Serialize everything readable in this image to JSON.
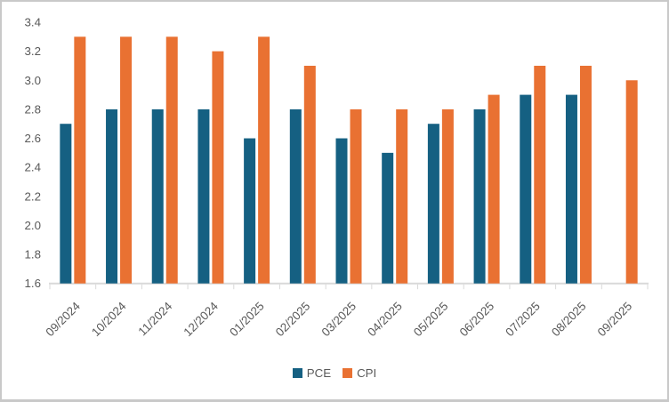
{
  "chart_data": {
    "type": "bar",
    "title": "",
    "xlabel": "",
    "ylabel": "",
    "categories": [
      "09/2024",
      "10/2024",
      "11/2024",
      "12/2024",
      "01/2025",
      "02/2025",
      "03/2025",
      "04/2025",
      "05/2025",
      "06/2025",
      "07/2025",
      "08/2025",
      "09/2025"
    ],
    "series": [
      {
        "name": "PCE",
        "color": "#156082",
        "values": [
          2.7,
          2.8,
          2.8,
          2.8,
          2.6,
          2.8,
          2.6,
          2.5,
          2.7,
          2.8,
          2.9,
          2.9,
          null
        ]
      },
      {
        "name": "CPI",
        "color": "#E97132",
        "values": [
          3.3,
          3.3,
          3.3,
          3.2,
          3.3,
          3.1,
          2.8,
          2.8,
          2.8,
          2.9,
          3.1,
          3.1,
          3.0
        ]
      }
    ],
    "ylim": [
      1.6,
      3.4
    ],
    "ytick_step": 0.2,
    "ytick_labels": [
      "3.4",
      "3.2",
      "3.0",
      "2.8",
      "2.6",
      "2.4",
      "2.2",
      "2.0",
      "1.8",
      "1.6"
    ],
    "grid": false,
    "legend_position": "bottom",
    "x_label_rotation_deg": -45,
    "colors": {
      "axis_line": "#D9D9D9",
      "tick_text": "#595959",
      "legend_text": "#595959",
      "background": "#FFFFFF",
      "frame_border": "#C9C9C9"
    }
  }
}
